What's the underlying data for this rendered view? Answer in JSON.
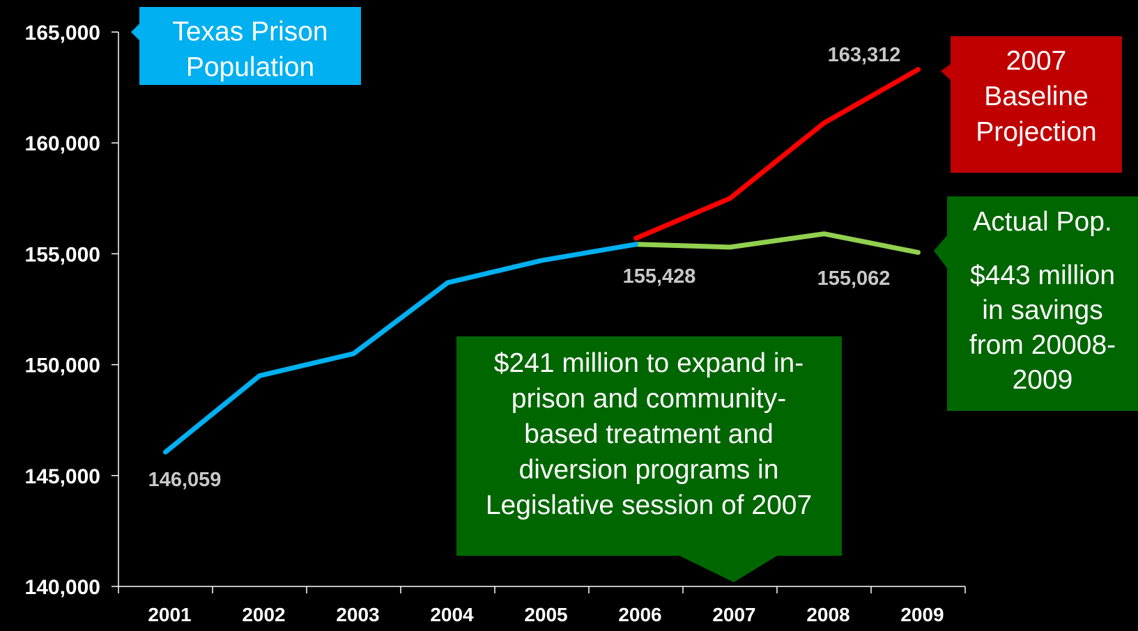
{
  "colors": {
    "background": "#000000",
    "historical": "#00b0f0",
    "projection": "#ff0000",
    "actual": "#92d050",
    "title_box": "#00b0f0",
    "projection_box": "#c00000",
    "actual_box": "#006600",
    "treatment_box": "#006600",
    "axis": "#ffffff",
    "value_label": "#c8c8c8"
  },
  "chart_data": {
    "type": "line",
    "categories": [
      "2001",
      "2002",
      "2003",
      "2004",
      "2005",
      "2006",
      "2007",
      "2008",
      "2009"
    ],
    "ylim": [
      140000,
      165000
    ],
    "yticks": [
      140000,
      145000,
      150000,
      155000,
      160000,
      165000
    ],
    "ytick_labels": [
      "140,000",
      "145,000",
      "150,000",
      "155,000",
      "160,000",
      "165,000"
    ],
    "grid": false,
    "series": [
      {
        "key": "historical",
        "x": [
          "2001",
          "2002",
          "2003",
          "2004",
          "2005",
          "2006"
        ],
        "values": [
          146059,
          149500,
          150500,
          153700,
          154700,
          155428
        ]
      },
      {
        "key": "projection",
        "x": [
          "2006",
          "2007",
          "2008",
          "2009"
        ],
        "values": [
          155700,
          157500,
          160900,
          163312
        ]
      },
      {
        "key": "actual",
        "x": [
          "2006",
          "2007",
          "2008",
          "2009"
        ],
        "values": [
          155428,
          155300,
          155900,
          155062
        ]
      }
    ],
    "data_labels": [
      "146,059",
      "155,428",
      "155,062",
      "163,312"
    ],
    "annotations": {
      "title_box": [
        "Texas Prison",
        "Population"
      ],
      "projection_box": [
        "2007",
        "Baseline",
        "Projection"
      ],
      "actual_box_heading": "Actual Pop.",
      "actual_box_body": [
        "$443 million",
        "in savings",
        "from 20008-",
        "2009"
      ],
      "treatment_box": [
        "$241 million to expand in-",
        "prison and community-",
        "based treatment and",
        "diversion programs in",
        "Legislative session of 2007"
      ]
    }
  }
}
